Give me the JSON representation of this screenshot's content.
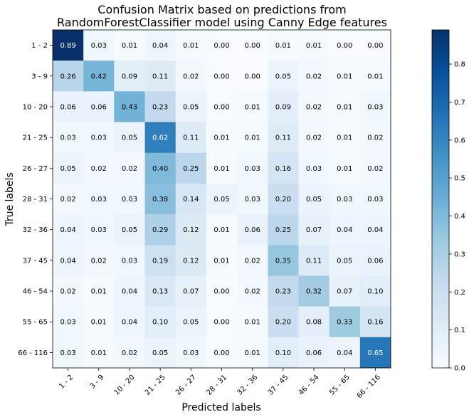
{
  "chart_data": {
    "type": "heatmap",
    "title_lines": [
      "Confusion Matrix based on predictions from",
      "RandomForestClassifier model using Canny Edge features"
    ],
    "xlabel": "Predicted labels",
    "ylabel": "True labels",
    "x_categories": [
      "1 - 2",
      "3 - 9",
      "10 - 20",
      "21 - 25",
      "26 - 27",
      "28 - 31",
      "32 - 36",
      "37 - 45",
      "46 - 54",
      "55 - 65",
      "66 - 116"
    ],
    "y_categories": [
      "1 - 2",
      "3 - 9",
      "10 - 20",
      "21 - 25",
      "26 - 27",
      "28 - 31",
      "32 - 36",
      "37 - 45",
      "46 - 54",
      "55 - 65",
      "66 - 116"
    ],
    "values": [
      [
        0.89,
        0.03,
        0.01,
        0.04,
        0.01,
        0.0,
        0.0,
        0.01,
        0.01,
        0.0,
        0.0
      ],
      [
        0.26,
        0.42,
        0.09,
        0.11,
        0.02,
        0.0,
        0.0,
        0.05,
        0.02,
        0.01,
        0.01
      ],
      [
        0.06,
        0.06,
        0.43,
        0.23,
        0.05,
        0.0,
        0.01,
        0.09,
        0.02,
        0.01,
        0.03
      ],
      [
        0.03,
        0.03,
        0.05,
        0.62,
        0.11,
        0.01,
        0.01,
        0.11,
        0.02,
        0.01,
        0.02
      ],
      [
        0.05,
        0.02,
        0.02,
        0.4,
        0.25,
        0.01,
        0.03,
        0.16,
        0.03,
        0.01,
        0.02
      ],
      [
        0.02,
        0.03,
        0.03,
        0.38,
        0.14,
        0.05,
        0.03,
        0.2,
        0.05,
        0.03,
        0.03
      ],
      [
        0.04,
        0.03,
        0.05,
        0.29,
        0.12,
        0.01,
        0.06,
        0.25,
        0.07,
        0.04,
        0.04
      ],
      [
        0.04,
        0.02,
        0.03,
        0.19,
        0.12,
        0.01,
        0.02,
        0.35,
        0.11,
        0.05,
        0.06
      ],
      [
        0.02,
        0.01,
        0.04,
        0.13,
        0.07,
        0.0,
        0.02,
        0.23,
        0.32,
        0.07,
        0.1
      ],
      [
        0.03,
        0.01,
        0.04,
        0.1,
        0.05,
        0.0,
        0.01,
        0.2,
        0.08,
        0.33,
        0.16
      ],
      [
        0.03,
        0.01,
        0.02,
        0.05,
        0.03,
        0.0,
        0.01,
        0.1,
        0.06,
        0.04,
        0.65
      ]
    ],
    "colormap": "Blues",
    "vmin": 0.0,
    "vmax": 0.89,
    "colorbar_ticks": [
      "0.0",
      "0.1",
      "0.2",
      "0.3",
      "0.4",
      "0.5",
      "0.6",
      "0.7",
      "0.8"
    ],
    "grid": false
  }
}
